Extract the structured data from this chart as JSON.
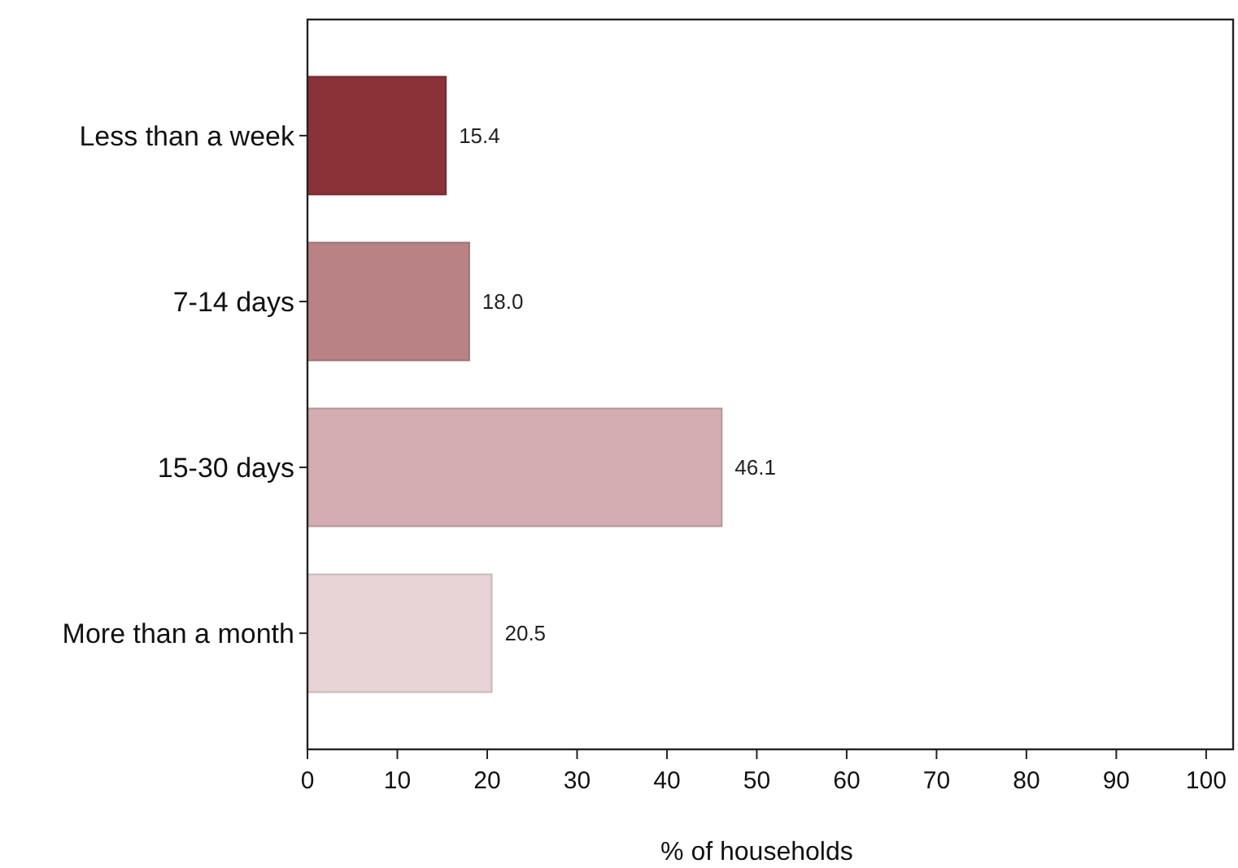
{
  "chart_data": {
    "type": "bar",
    "orientation": "horizontal",
    "xlabel": "% of households",
    "categories": [
      "Less than a week",
      "7-14 days",
      "15-30 days",
      "More than a month"
    ],
    "values": [
      15.4,
      18.0,
      46.1,
      20.5
    ],
    "colors": [
      "#8b3138",
      "#b98385",
      "#d3adb1",
      "#e8d4d6"
    ],
    "xlim": [
      0,
      103
    ],
    "xticks": [
      0,
      10,
      20,
      30,
      40,
      50,
      60,
      70,
      80,
      90,
      100
    ],
    "data_labels": true,
    "value_labels": [
      "15.4",
      "18.0",
      "46.1",
      "20.5"
    ]
  }
}
